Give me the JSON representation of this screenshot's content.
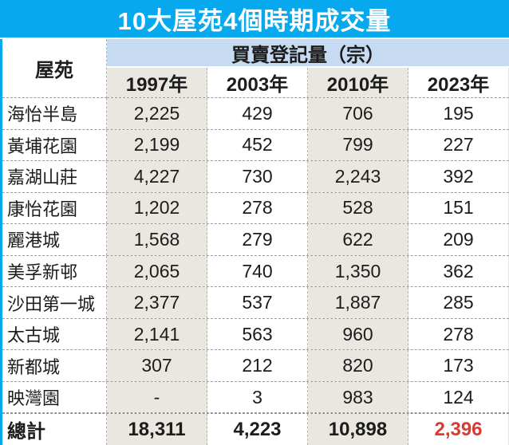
{
  "title": "10大屋苑4個時期成交量",
  "colors": {
    "title_bg": "#06a9ee",
    "group_header_bg": "#c6daf1",
    "shaded_column_bg": "#e9e7e0",
    "white_column_bg": "#ffffff",
    "text": "#1c1c1c",
    "total_highlight_red": "#d93a31"
  },
  "table": {
    "corner_header": "屋苑",
    "group_header": "買賣登記量（宗）",
    "year_headers": [
      "1997年",
      "2003年",
      "2010年",
      "2023年"
    ],
    "rows": [
      {
        "name": "海怡半島",
        "values": [
          "2,225",
          "429",
          "706",
          "195"
        ]
      },
      {
        "name": "黃埔花園",
        "values": [
          "2,199",
          "452",
          "799",
          "227"
        ]
      },
      {
        "name": "嘉湖山莊",
        "values": [
          "4,227",
          "730",
          "2,243",
          "392"
        ]
      },
      {
        "name": "康怡花園",
        "values": [
          "1,202",
          "278",
          "528",
          "151"
        ]
      },
      {
        "name": "麗港城",
        "values": [
          "1,568",
          "279",
          "622",
          "209"
        ]
      },
      {
        "name": "美孚新邨",
        "values": [
          "2,065",
          "740",
          "1,350",
          "362"
        ]
      },
      {
        "name": "沙田第一城",
        "values": [
          "2,377",
          "537",
          "1,887",
          "285"
        ]
      },
      {
        "name": "太古城",
        "values": [
          "2,141",
          "563",
          "960",
          "278"
        ]
      },
      {
        "name": "新都城",
        "values": [
          "307",
          "212",
          "820",
          "173"
        ]
      },
      {
        "name": "映灣園",
        "values": [
          "-",
          "3",
          "983",
          "124"
        ]
      }
    ],
    "total": {
      "name": "總計",
      "values": [
        "18,311",
        "4,223",
        "10,898",
        "2,396"
      ]
    }
  },
  "chart_data": {
    "type": "table",
    "title": "10大屋苑4個時期成交量",
    "subtitle": "買賣登記量（宗）",
    "categories": [
      "1997年",
      "2003年",
      "2010年",
      "2023年"
    ],
    "series": [
      {
        "name": "海怡半島",
        "values": [
          2225,
          429,
          706,
          195
        ]
      },
      {
        "name": "黃埔花園",
        "values": [
          2199,
          452,
          799,
          227
        ]
      },
      {
        "name": "嘉湖山莊",
        "values": [
          4227,
          730,
          2243,
          392
        ]
      },
      {
        "name": "康怡花園",
        "values": [
          1202,
          278,
          528,
          151
        ]
      },
      {
        "name": "麗港城",
        "values": [
          1568,
          279,
          622,
          209
        ]
      },
      {
        "name": "美孚新邨",
        "values": [
          2065,
          740,
          1350,
          362
        ]
      },
      {
        "name": "沙田第一城",
        "values": [
          2377,
          537,
          1887,
          285
        ]
      },
      {
        "name": "太古城",
        "values": [
          2141,
          563,
          960,
          278
        ]
      },
      {
        "name": "新都城",
        "values": [
          307,
          212,
          820,
          173
        ]
      },
      {
        "name": "映灣園",
        "values": [
          null,
          3,
          983,
          124
        ]
      },
      {
        "name": "總計",
        "values": [
          18311,
          4223,
          10898,
          2396
        ]
      }
    ]
  }
}
